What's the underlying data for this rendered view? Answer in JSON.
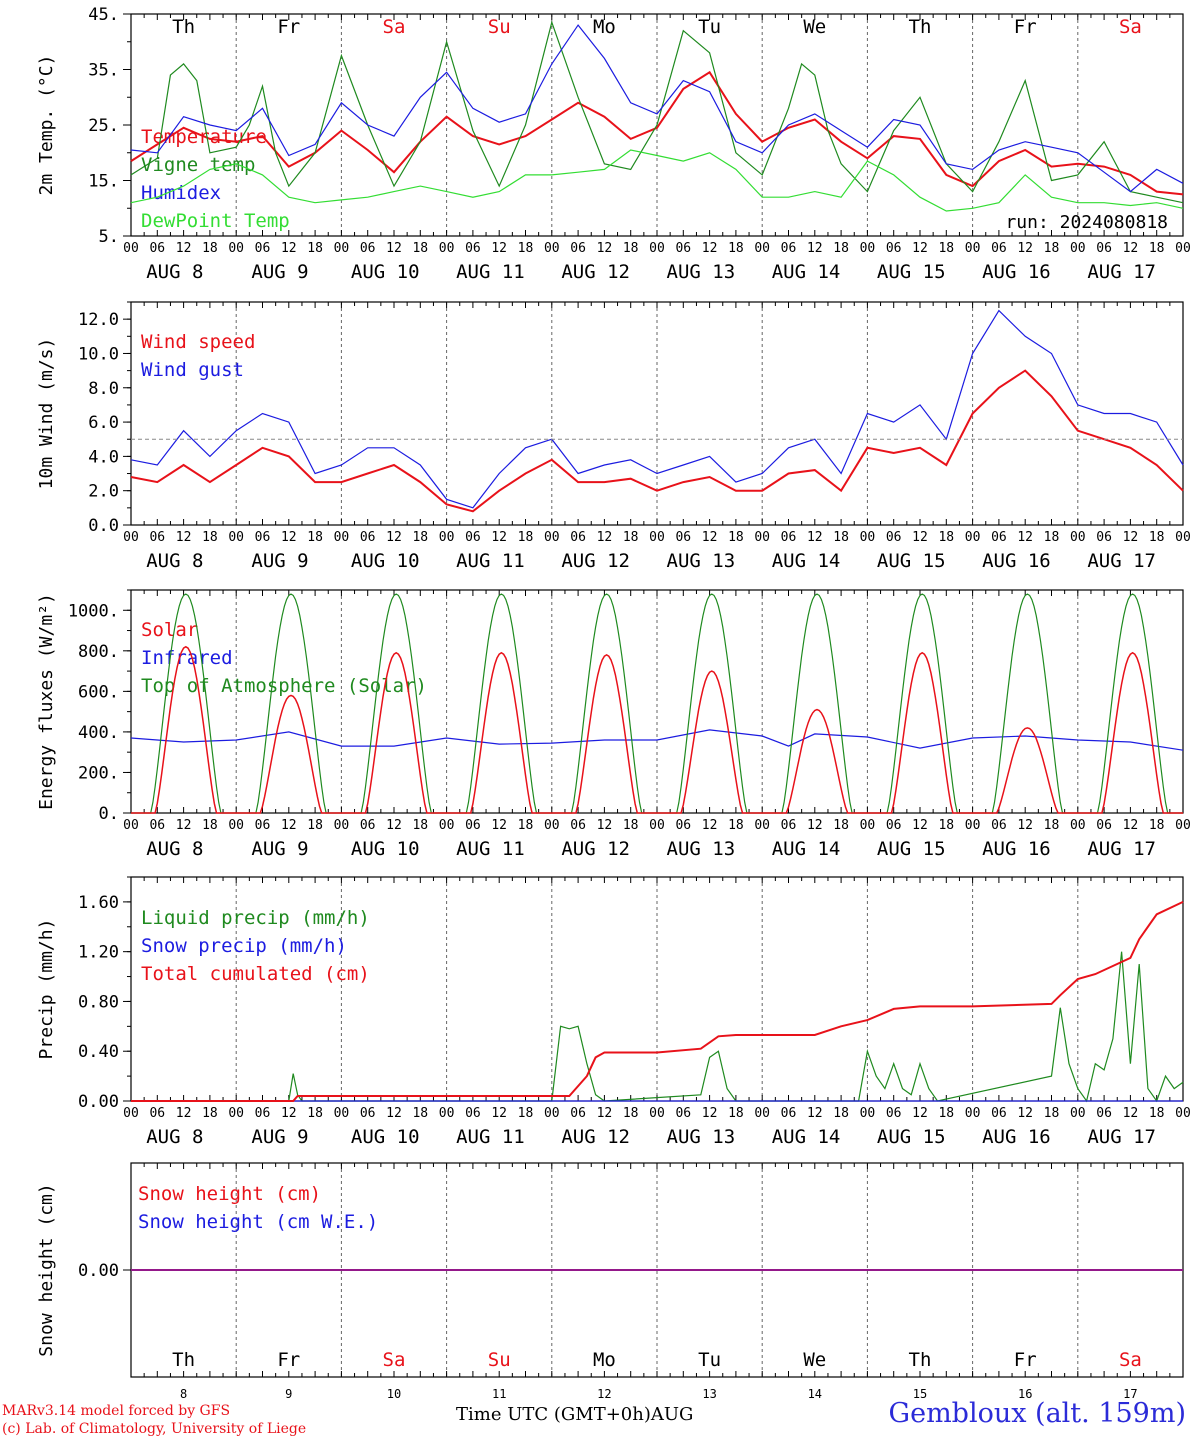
{
  "colors": {
    "red": "#e8121a",
    "green": "#1f8a1f",
    "blue": "#1c1ce0",
    "lightgreen": "#33dd33",
    "purple": "#8a1aa0",
    "grid": "#666666",
    "threshold": "#888888"
  },
  "footer": {
    "credit_line1": "MARv3.14 model forced by GFS",
    "credit_line2": "(c) Lab. of Climatology, University of Liege",
    "time_axis_label": "Time UTC (GMT+0h)AUG",
    "station": "Gembloux (alt. 159m)"
  },
  "chart_data": [
    {
      "type": "line",
      "id": "temp",
      "ylabel": "2m Temp. (°C)",
      "ylim": [
        5,
        45
      ],
      "yticks": [
        5,
        15,
        25,
        35,
        45
      ],
      "ytick_labels": [
        "5.",
        "15.",
        "25.",
        "35.",
        "45."
      ],
      "annotation": "run: 2024080818",
      "weekday_labels": [
        "Th",
        "Fr",
        "Sa",
        "Su",
        "Mo",
        "Tu",
        "We",
        "Th",
        "Fr",
        "Sa"
      ],
      "weekend_flags": [
        false,
        false,
        true,
        true,
        false,
        false,
        false,
        false,
        false,
        true
      ],
      "hour_labels": [
        "00",
        "06",
        "12",
        "18"
      ],
      "day_labels": [
        "AUG  8",
        "AUG  9",
        "AUG 10",
        "AUG 11",
        "AUG 12",
        "AUG 13",
        "AUG 14",
        "AUG 15",
        "AUG 16",
        "AUG 17"
      ],
      "x_unit": "hours since Aug 8 00 UTC",
      "series": [
        {
          "name": "Temperature",
          "color": "red",
          "x": [
            0,
            6,
            12,
            18,
            24,
            30,
            36,
            42,
            48,
            54,
            60,
            66,
            72,
            78,
            84,
            90,
            96,
            102,
            108,
            114,
            120,
            126,
            132,
            138,
            144,
            150,
            156,
            162,
            168,
            174,
            180,
            186,
            192,
            198,
            204,
            210,
            216,
            222,
            228,
            234,
            240
          ],
          "y": [
            18.5,
            21.5,
            24.5,
            22.5,
            22,
            23,
            17.5,
            20,
            24,
            20.5,
            16.5,
            22,
            26.5,
            23,
            21.5,
            23,
            26,
            29,
            26.5,
            22.5,
            24.5,
            31.5,
            34.5,
            27,
            22,
            24.5,
            26,
            22,
            19,
            23,
            22.5,
            16,
            14,
            18.5,
            20.5,
            17.5,
            18,
            17.5,
            16,
            13,
            12.5
          ]
        },
        {
          "name": "Vigne temp",
          "color": "green",
          "x": [
            0,
            6,
            9,
            12,
            15,
            18,
            24,
            27,
            30,
            33,
            36,
            42,
            48,
            54,
            60,
            66,
            72,
            78,
            84,
            90,
            96,
            102,
            108,
            114,
            120,
            126,
            132,
            138,
            144,
            150,
            153,
            156,
            159,
            162,
            168,
            174,
            180,
            186,
            192,
            198,
            204,
            210,
            216,
            222,
            228,
            234,
            240
          ],
          "y": [
            16,
            19,
            34,
            36,
            33,
            20,
            21,
            25,
            32,
            20,
            14,
            20,
            37.5,
            25,
            14,
            22,
            40,
            24,
            14,
            25,
            43.5,
            30,
            18,
            17,
            25,
            42,
            38,
            20,
            16,
            28,
            36,
            34,
            24,
            18,
            13,
            24,
            30,
            18,
            13,
            22,
            33,
            15,
            16,
            22,
            13,
            12,
            11
          ]
        },
        {
          "name": "Humidex",
          "color": "blue",
          "x": [
            0,
            6,
            12,
            18,
            24,
            30,
            36,
            42,
            48,
            54,
            60,
            66,
            72,
            78,
            84,
            90,
            96,
            102,
            108,
            114,
            120,
            126,
            132,
            138,
            144,
            150,
            156,
            162,
            168,
            174,
            180,
            186,
            192,
            198,
            204,
            210,
            216,
            222,
            228,
            234,
            240
          ],
          "y": [
            20.5,
            20,
            26.5,
            25,
            24,
            28,
            19.5,
            21.5,
            29,
            25,
            23,
            30,
            34.5,
            28,
            25.5,
            27,
            36,
            43,
            37,
            29,
            27,
            33,
            31,
            22,
            20,
            25,
            27,
            24,
            21,
            26,
            25,
            18,
            17,
            20.5,
            22,
            21,
            20,
            16.5,
            13,
            17,
            14.5
          ]
        },
        {
          "name": "DewPoint Temp",
          "color": "lightgreen",
          "x": [
            0,
            6,
            12,
            18,
            24,
            30,
            36,
            42,
            48,
            54,
            60,
            66,
            72,
            78,
            84,
            90,
            96,
            102,
            108,
            114,
            120,
            126,
            132,
            138,
            144,
            150,
            156,
            162,
            168,
            174,
            180,
            186,
            192,
            198,
            204,
            210,
            216,
            222,
            228,
            234,
            240
          ],
          "y": [
            11,
            12,
            14,
            17,
            18,
            16,
            12,
            11,
            11.5,
            12,
            13,
            14,
            13,
            12,
            13,
            16,
            16,
            16.5,
            17,
            20.5,
            19.5,
            18.5,
            20,
            17,
            12,
            12,
            13,
            12,
            18.5,
            16,
            12,
            9.5,
            10,
            11,
            16,
            12,
            11,
            11,
            10.5,
            11,
            10
          ]
        }
      ]
    },
    {
      "type": "line",
      "id": "wind",
      "ylabel": "10m Wind (m/s)",
      "ylim": [
        0,
        13
      ],
      "yticks": [
        0,
        2,
        4,
        6,
        8,
        10,
        12
      ],
      "ytick_labels": [
        "0.0",
        "2.0",
        "4.0",
        "6.0",
        "8.0",
        "10.0",
        "12.0"
      ],
      "threshold": 5,
      "x_unit": "hours since Aug 8 00 UTC",
      "series": [
        {
          "name": "Wind speed",
          "color": "red",
          "x": [
            0,
            6,
            12,
            18,
            24,
            30,
            36,
            42,
            48,
            54,
            60,
            66,
            72,
            78,
            84,
            90,
            96,
            102,
            108,
            114,
            120,
            126,
            132,
            138,
            144,
            150,
            156,
            162,
            168,
            174,
            180,
            186,
            192,
            198,
            204,
            210,
            216,
            222,
            228,
            234,
            240
          ],
          "y": [
            2.8,
            2.5,
            3.5,
            2.5,
            3.5,
            4.5,
            4,
            2.5,
            2.5,
            3,
            3.5,
            2.5,
            1.2,
            0.8,
            2,
            3,
            3.8,
            2.5,
            2.5,
            2.7,
            2,
            2.5,
            2.8,
            2,
            2,
            3,
            3.2,
            2,
            4.5,
            4.2,
            4.5,
            3.5,
            6.5,
            8,
            9,
            7.5,
            5.5,
            5,
            4.5,
            3.5,
            2
          ]
        },
        {
          "name": "Wind gust",
          "color": "blue",
          "x": [
            0,
            6,
            12,
            18,
            24,
            30,
            36,
            42,
            48,
            54,
            60,
            66,
            72,
            78,
            84,
            90,
            96,
            102,
            108,
            114,
            120,
            126,
            132,
            138,
            144,
            150,
            156,
            162,
            168,
            174,
            180,
            186,
            192,
            198,
            204,
            210,
            216,
            222,
            228,
            234,
            240
          ],
          "y": [
            3.8,
            3.5,
            5.5,
            4,
            5.5,
            6.5,
            6,
            3,
            3.5,
            4.5,
            4.5,
            3.5,
            1.5,
            1,
            3,
            4.5,
            5,
            3,
            3.5,
            3.8,
            3,
            3.5,
            4,
            2.5,
            3,
            4.5,
            5,
            3,
            6.5,
            6,
            7,
            5,
            10,
            12.5,
            11,
            10,
            7,
            6.5,
            6.5,
            6,
            3.5
          ]
        }
      ]
    },
    {
      "type": "line",
      "id": "energy",
      "ylabel": "Energy fluxes (W/m²)",
      "ylim": [
        0,
        1100
      ],
      "yticks": [
        0,
        200,
        400,
        600,
        800,
        1000
      ],
      "ytick_labels": [
        "0.",
        "200.",
        "400.",
        "600.",
        "800.",
        "1000."
      ],
      "x_unit": "hours since Aug 8 00 UTC",
      "solar_peaks": [
        820,
        580,
        790,
        790,
        780,
        700,
        510,
        790,
        420,
        790
      ],
      "toa_peak": 1080,
      "series": [
        {
          "name": "Solar",
          "color": "red"
        },
        {
          "name": "Infrared",
          "color": "blue",
          "x": [
            0,
            12,
            24,
            36,
            48,
            60,
            72,
            84,
            96,
            108,
            120,
            132,
            144,
            150,
            156,
            168,
            180,
            192,
            204,
            216,
            228,
            240
          ],
          "y": [
            370,
            350,
            360,
            400,
            330,
            330,
            370,
            340,
            345,
            360,
            360,
            410,
            380,
            330,
            390,
            375,
            320,
            370,
            380,
            360,
            350,
            310
          ]
        },
        {
          "name": "Top of Atmosphere (Solar)",
          "color": "green"
        }
      ]
    },
    {
      "type": "line",
      "id": "precip",
      "ylabel": "Precip (mm/h)",
      "ylim": [
        0,
        1.8
      ],
      "yticks": [
        0,
        0.4,
        0.8,
        1.2,
        1.6
      ],
      "ytick_labels": [
        "0.00",
        "0.40",
        "0.80",
        "1.20",
        "1.60"
      ],
      "x_unit": "hours since Aug 8 00 UTC",
      "series": [
        {
          "name": "Liquid precip (mm/h)",
          "color": "green",
          "x": [
            0,
            36,
            37,
            38,
            39,
            40,
            96,
            98,
            100,
            102,
            104,
            106,
            108,
            130,
            132,
            134,
            136,
            138,
            166,
            168,
            170,
            172,
            174,
            176,
            178,
            180,
            182,
            184,
            210,
            212,
            214,
            216,
            218,
            220,
            222,
            224,
            226,
            228,
            230,
            232,
            234,
            236,
            238,
            240
          ],
          "y": [
            0,
            0,
            0.22,
            0.05,
            0,
            0,
            0,
            0.6,
            0.58,
            0.6,
            0.3,
            0.05,
            0,
            0.05,
            0.35,
            0.4,
            0.1,
            0,
            0,
            0.4,
            0.2,
            0.1,
            0.3,
            0.1,
            0.05,
            0.3,
            0.1,
            0,
            0.2,
            0.75,
            0.3,
            0.1,
            0,
            0.3,
            0.25,
            0.5,
            1.2,
            0.3,
            1.1,
            0.1,
            0,
            0.2,
            0.1,
            0.15
          ]
        },
        {
          "name": "Snow precip (mm/h)",
          "color": "blue",
          "x": [
            0,
            240
          ],
          "y": [
            0,
            0
          ]
        },
        {
          "name": "Total cumulated (cm)",
          "color": "red",
          "x": [
            0,
            37,
            38,
            100,
            104,
            106,
            108,
            120,
            130,
            134,
            138,
            156,
            162,
            168,
            174,
            180,
            192,
            210,
            212,
            216,
            220,
            228,
            230,
            234,
            240
          ],
          "y": [
            0,
            0,
            0.04,
            0.04,
            0.2,
            0.35,
            0.39,
            0.39,
            0.42,
            0.52,
            0.53,
            0.53,
            0.6,
            0.65,
            0.74,
            0.76,
            0.76,
            0.78,
            0.85,
            0.98,
            1.02,
            1.15,
            1.3,
            1.5,
            1.6
          ]
        }
      ]
    },
    {
      "type": "line",
      "id": "snow",
      "ylabel": "Snow height (cm)",
      "yticks": [
        0
      ],
      "ytick_labels": [
        "0.00"
      ],
      "day_numbers": [
        "8",
        "9",
        "10",
        "11",
        "12",
        "13",
        "14",
        "15",
        "16",
        "17"
      ],
      "x_unit": "hours since Aug 8 00 UTC",
      "series": [
        {
          "name": "Snow height (cm)",
          "color": "red",
          "x": [
            0,
            240
          ],
          "y": [
            0,
            0
          ]
        },
        {
          "name": "Snow height (cm W.E.)",
          "color": "blue",
          "x": [
            0,
            240
          ],
          "y": [
            0,
            0
          ]
        }
      ]
    }
  ]
}
